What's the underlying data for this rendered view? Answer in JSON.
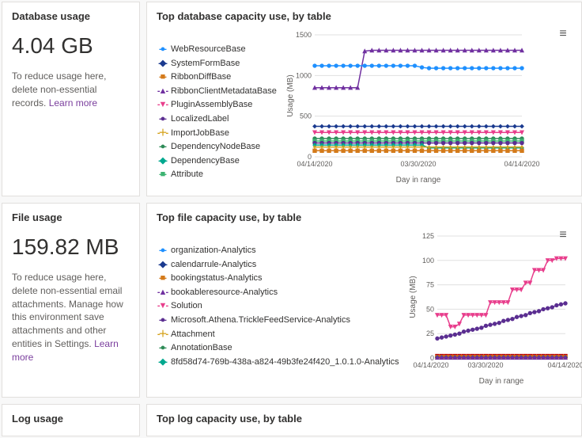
{
  "database_panel": {
    "title": "Database usage",
    "metric": "4.04 GB",
    "description": "To reduce usage here, delete non-essential records. ",
    "learn_more": "Learn more"
  },
  "database_chart": {
    "title": "Top database capacity use, by table",
    "type": "line",
    "ylabel": "Usage (MB)",
    "xlabel": "Day in range",
    "ylim_min": 0,
    "ylim_max": 1500,
    "ytick_step": 500,
    "x_ticks": [
      "04/14/2020",
      "03/30/2020",
      "04/14/2020"
    ],
    "background_color": "#ffffff",
    "grid_color": "#e0e0e0",
    "legend": [
      {
        "label": "WebResourceBase",
        "color": "#1f90ff",
        "marker": "circle"
      },
      {
        "label": "SystemFormBase",
        "color": "#1b3a8f",
        "marker": "diamond"
      },
      {
        "label": "RibbonDiffBase",
        "color": "#d47a1a",
        "marker": "square"
      },
      {
        "label": "RibbonClientMetadataBase",
        "color": "#7030a0",
        "marker": "triangle-up"
      },
      {
        "label": "PluginAssemblyBase",
        "color": "#e83e8c",
        "marker": "triangle-down"
      },
      {
        "label": "LocalizedLabel",
        "color": "#5b2e91",
        "marker": "circle"
      },
      {
        "label": "ImportJobBase",
        "color": "#d4a017",
        "marker": "plus"
      },
      {
        "label": "DependencyNodeBase",
        "color": "#2e8b57",
        "marker": "circle"
      },
      {
        "label": "DependencyBase",
        "color": "#00a88f",
        "marker": "diamond"
      },
      {
        "label": "Attribute",
        "color": "#3cb371",
        "marker": "square"
      }
    ],
    "series": [
      {
        "color": "#7030a0",
        "marker": "triangle-up",
        "values": [
          850,
          850,
          850,
          850,
          850,
          850,
          850,
          1300,
          1310,
          1310,
          1310,
          1310,
          1310,
          1310,
          1310,
          1310,
          1310,
          1310,
          1310,
          1310,
          1310,
          1310,
          1310,
          1310,
          1310,
          1310,
          1310,
          1310,
          1310,
          1310
        ]
      },
      {
        "color": "#1f90ff",
        "marker": "circle",
        "values": [
          1120,
          1120,
          1120,
          1120,
          1120,
          1120,
          1120,
          1120,
          1120,
          1120,
          1120,
          1120,
          1120,
          1120,
          1120,
          1100,
          1090,
          1090,
          1090,
          1090,
          1090,
          1090,
          1090,
          1090,
          1090,
          1090,
          1090,
          1090,
          1090,
          1090
        ]
      },
      {
        "color": "#1b3a8f",
        "marker": "diamond",
        "values": [
          375,
          375,
          375,
          375,
          375,
          375,
          375,
          375,
          375,
          375,
          375,
          375,
          375,
          375,
          375,
          375,
          375,
          375,
          375,
          375,
          375,
          375,
          375,
          375,
          375,
          375,
          375,
          375,
          375,
          375
        ]
      },
      {
        "color": "#e83e8c",
        "marker": "triangle-down",
        "values": [
          300,
          300,
          300,
          300,
          300,
          300,
          300,
          300,
          300,
          300,
          300,
          300,
          300,
          300,
          300,
          300,
          300,
          300,
          300,
          300,
          300,
          300,
          300,
          300,
          300,
          300,
          300,
          300,
          300,
          300
        ]
      },
      {
        "color": "#2e8b57",
        "marker": "circle",
        "values": [
          225,
          225,
          225,
          225,
          225,
          225,
          225,
          225,
          225,
          225,
          225,
          225,
          225,
          225,
          225,
          225,
          225,
          225,
          225,
          225,
          225,
          225,
          225,
          225,
          225,
          225,
          225,
          225,
          225,
          225
        ]
      },
      {
        "color": "#3cb371",
        "marker": "square",
        "values": [
          195,
          195,
          195,
          195,
          195,
          195,
          195,
          195,
          195,
          195,
          195,
          195,
          195,
          195,
          195,
          195,
          195,
          195,
          195,
          195,
          195,
          195,
          195,
          195,
          195,
          195,
          195,
          195,
          195,
          195
        ]
      },
      {
        "color": "#5b2e91",
        "marker": "circle",
        "values": [
          170,
          170,
          170,
          170,
          170,
          170,
          170,
          170,
          170,
          170,
          170,
          170,
          170,
          170,
          170,
          170,
          170,
          170,
          170,
          170,
          170,
          170,
          170,
          170,
          170,
          170,
          170,
          170,
          170,
          170
        ]
      },
      {
        "color": "#00a88f",
        "marker": "diamond",
        "values": [
          145,
          145,
          145,
          145,
          145,
          145,
          145,
          145,
          145,
          145,
          145,
          145,
          145,
          145,
          145,
          145,
          110,
          110,
          110,
          110,
          110,
          110,
          110,
          110,
          110,
          110,
          110,
          110,
          110,
          110
        ]
      },
      {
        "color": "#d4a017",
        "marker": "plus",
        "values": [
          120,
          120,
          120,
          120,
          120,
          120,
          120,
          120,
          120,
          120,
          120,
          120,
          120,
          120,
          120,
          120,
          120,
          120,
          120,
          120,
          120,
          120,
          120,
          120,
          120,
          120,
          120,
          120,
          120,
          120
        ]
      },
      {
        "color": "#d47a1a",
        "marker": "square",
        "values": [
          75,
          75,
          75,
          75,
          75,
          75,
          75,
          75,
          75,
          75,
          75,
          75,
          75,
          75,
          75,
          75,
          75,
          75,
          75,
          75,
          75,
          75,
          75,
          75,
          75,
          75,
          75,
          75,
          75,
          75
        ]
      }
    ]
  },
  "file_panel": {
    "title": "File usage",
    "metric": "159.82 MB",
    "description": "To reduce usage here, delete non-essential email attachments. Manage how this environment save attachments and other entities in Settings. ",
    "learn_more": "Learn more"
  },
  "file_chart": {
    "title": "Top file capacity use, by table",
    "type": "line",
    "ylabel": "Usage (MB)",
    "xlabel": "Day in range",
    "ylim_min": 0,
    "ylim_max": 125,
    "ytick_step": 25,
    "x_ticks": [
      "04/14/2020",
      "03/30/2020",
      "04/14/2020"
    ],
    "background_color": "#ffffff",
    "grid_color": "#e0e0e0",
    "x_tick_overlap": true,
    "legend": [
      {
        "label": "organization-Analytics",
        "color": "#1f90ff",
        "marker": "circle"
      },
      {
        "label": "calendarrule-Analytics",
        "color": "#1b3a8f",
        "marker": "diamond"
      },
      {
        "label": "bookingstatus-Analytics",
        "color": "#d47a1a",
        "marker": "square"
      },
      {
        "label": "bookableresource-Analytics",
        "color": "#7030a0",
        "marker": "triangle-up"
      },
      {
        "label": "Solution",
        "color": "#e83e8c",
        "marker": "triangle-down"
      },
      {
        "label": "Microsoft.Athena.TrickleFeedService-Analytics",
        "color": "#5b2e91",
        "marker": "circle"
      },
      {
        "label": "Attachment",
        "color": "#d4a017",
        "marker": "plus"
      },
      {
        "label": "AnnotationBase",
        "color": "#2e8b57",
        "marker": "circle"
      },
      {
        "label": "8fd58d74-769b-438a-a824-49b3fe24f420_1.0.1.0-Analytics",
        "color": "#00a88f",
        "marker": "diamond"
      }
    ],
    "series": [
      {
        "color": "#e83e8c",
        "marker": "triangle-down",
        "values": [
          44,
          44,
          44,
          32,
          32,
          35,
          44,
          44,
          44,
          44,
          44,
          44,
          57,
          57,
          57,
          57,
          57,
          70,
          70,
          70,
          77,
          77,
          90,
          90,
          90,
          100,
          100,
          102,
          102,
          102
        ]
      },
      {
        "color": "#5b2e91",
        "marker": "circle",
        "values": [
          20,
          21,
          22,
          23,
          24,
          25,
          27,
          28,
          29,
          30,
          31,
          33,
          34,
          35,
          36,
          38,
          39,
          40,
          42,
          43,
          44,
          46,
          47,
          48,
          50,
          51,
          52,
          54,
          55,
          56
        ]
      },
      {
        "color": "#c00000",
        "marker": "square",
        "values": [
          2,
          2,
          2,
          2,
          2,
          2,
          2,
          2,
          2,
          2,
          2,
          2,
          2,
          2,
          2,
          2,
          2,
          2,
          2,
          2,
          2,
          2,
          2,
          2,
          2,
          2,
          2,
          2,
          2,
          2
        ]
      },
      {
        "color": "#1f90ff",
        "marker": "circle",
        "values": [
          1,
          1,
          1,
          1,
          1,
          1,
          1,
          1,
          1,
          1,
          1,
          1,
          1,
          1,
          1,
          1,
          1,
          1,
          1,
          1,
          1,
          1,
          1,
          1,
          1,
          1,
          1,
          1,
          1,
          1
        ]
      },
      {
        "color": "#00a88f",
        "marker": "diamond",
        "values": [
          1,
          1,
          1,
          1,
          1,
          1,
          1,
          1,
          1,
          1,
          1,
          1,
          1,
          1,
          1,
          1,
          1,
          1,
          1,
          1,
          1,
          1,
          1,
          1,
          1,
          1,
          1,
          1,
          1,
          1
        ]
      },
      {
        "color": "#2e8b57",
        "marker": "circle",
        "values": [
          1,
          1,
          1,
          1,
          1,
          1,
          1,
          1,
          1,
          1,
          1,
          1,
          1,
          1,
          1,
          1,
          1,
          1,
          1,
          1,
          1,
          1,
          1,
          1,
          1,
          1,
          1,
          1,
          1,
          1
        ]
      },
      {
        "color": "#d47a1a",
        "marker": "square",
        "values": [
          0.8,
          0.8,
          0.8,
          0.8,
          0.8,
          0.8,
          0.8,
          0.8,
          0.8,
          0.8,
          0.8,
          0.8,
          0.8,
          0.8,
          0.8,
          0.8,
          0.8,
          0.8,
          0.8,
          0.8,
          0.8,
          0.8,
          0.8,
          0.8,
          0.8,
          0.8,
          0.8,
          0.8,
          0.8,
          0.8
        ]
      },
      {
        "color": "#1b3a8f",
        "marker": "diamond",
        "values": [
          0.6,
          0.6,
          0.6,
          0.6,
          0.6,
          0.6,
          0.6,
          0.6,
          0.6,
          0.6,
          0.6,
          0.6,
          0.6,
          0.6,
          0.6,
          0.6,
          0.6,
          0.6,
          0.6,
          0.6,
          0.6,
          0.6,
          0.6,
          0.6,
          0.6,
          0.6,
          0.6,
          0.6,
          0.6,
          0.6
        ]
      },
      {
        "color": "#7030a0",
        "marker": "triangle-up",
        "values": [
          0.5,
          0.5,
          0.5,
          0.5,
          0.5,
          0.5,
          0.5,
          0.5,
          0.5,
          0.5,
          0.5,
          0.5,
          0.5,
          0.5,
          0.5,
          0.5,
          0.5,
          0.5,
          0.5,
          0.5,
          0.5,
          0.5,
          0.5,
          0.5,
          0.5,
          0.5,
          0.5,
          0.5,
          0.5,
          0.5
        ]
      }
    ]
  },
  "log_panel": {
    "title": "Log usage"
  },
  "log_chart": {
    "title": "Top log capacity use, by table"
  },
  "marker_glyphs": {
    "circle": "●",
    "diamond": "◆",
    "square": "■",
    "triangle-up": "▲",
    "triangle-down": "▼",
    "plus": "＋"
  }
}
